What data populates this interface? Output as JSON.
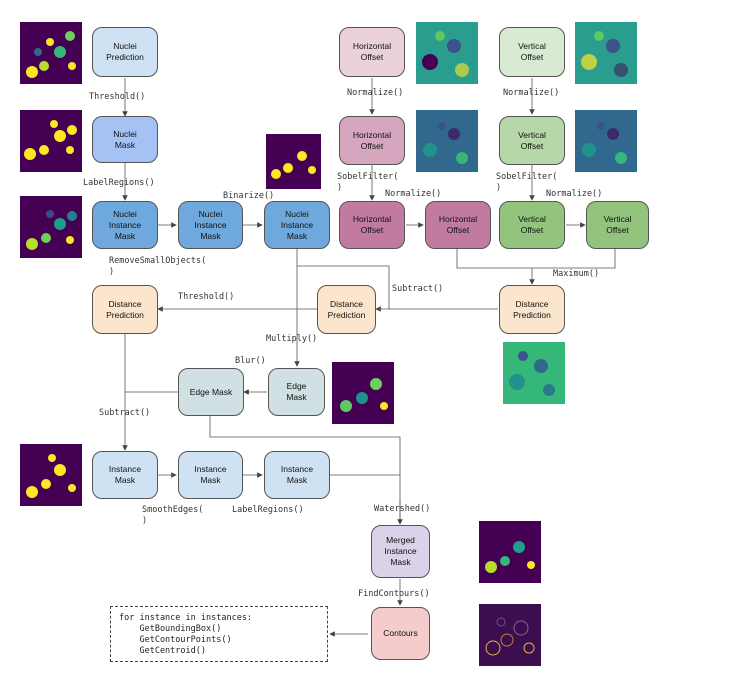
{
  "colors": {
    "light_blue": "#cfe2f3",
    "mid_blue": "#a4c2f4",
    "dark_blue": "#6fa8dc",
    "light_pink": "#ead1dc",
    "mid_pink": "#d5a6bd",
    "dark_pink": "#c27ba0",
    "light_green": "#d9ead3",
    "mid_green": "#b6d7a8",
    "dark_green": "#93c47d",
    "peach": "#fce5cd",
    "teal": "#d0e0e3",
    "lavender": "#d9d2e9",
    "rose": "#f4cccc"
  },
  "nodes": {
    "nuclei_prediction": "Nuclei\nPrediction",
    "nuclei_mask": "Nuclei\nMask",
    "nuclei_instance_mask_1": "Nuclei\nInstance\nMask",
    "nuclei_instance_mask_2": "Nuclei\nInstance\nMask",
    "nuclei_instance_mask_3": "Nuclei\nInstance\nMask",
    "horizontal_offset_1": "Horizontal\nOffset",
    "horizontal_offset_2": "Horizontal\nOffset",
    "horizontal_offset_3": "Horizontal\nOffset",
    "horizontal_offset_4": "Horizontal\nOffset",
    "vertical_offset_1": "Vertical\nOffset",
    "vertical_offset_2": "Vertical\nOffset",
    "vertical_offset_3": "Vertical\nOffset",
    "vertical_offset_4": "Vertical\nOffset",
    "distance_prediction_left": "Distance\nPrediction",
    "distance_prediction_mid": "Distance\nPrediction",
    "distance_prediction_right": "Distance\nPrediction",
    "edge_mask_left": "Edge Mask",
    "edge_mask_right": "Edge\nMask",
    "instance_mask_1": "Instance\nMask",
    "instance_mask_2": "Instance\nMask",
    "instance_mask_3": "Instance\nMask",
    "merged_instance_mask": "Merged\nInstance\nMask",
    "contours": "Contours"
  },
  "edge_labels": {
    "threshold_1": "Threshold()",
    "label_regions_1": "LabelRegions()",
    "binarize": "Binarize()",
    "remove_small_objects": "RemoveSmallObjects(\n)",
    "normalize_h1": "Normalize()",
    "normalize_v1": "Normalize()",
    "sobel_h": "SobelFilter(\n)",
    "sobel_v": "SobelFilter(\n)",
    "normalize_h2": "Normalize()",
    "normalize_v2": "Normalize()",
    "maximum": "Maximum()",
    "subtract_1": "Subtract()",
    "threshold_2": "Threshold()",
    "multiply": "Multiply()",
    "blur": "Blur()",
    "subtract_2": "Subtract()",
    "smooth_edges": "SmoothEdges(\n)",
    "label_regions_2": "LabelRegions()",
    "watershed": "Watershed()",
    "find_contours": "FindContours()"
  },
  "code_block": [
    "for instance in instances:",
    "    GetBoundingBox()",
    "    GetContourPoints()",
    "    GetCentroid()"
  ]
}
